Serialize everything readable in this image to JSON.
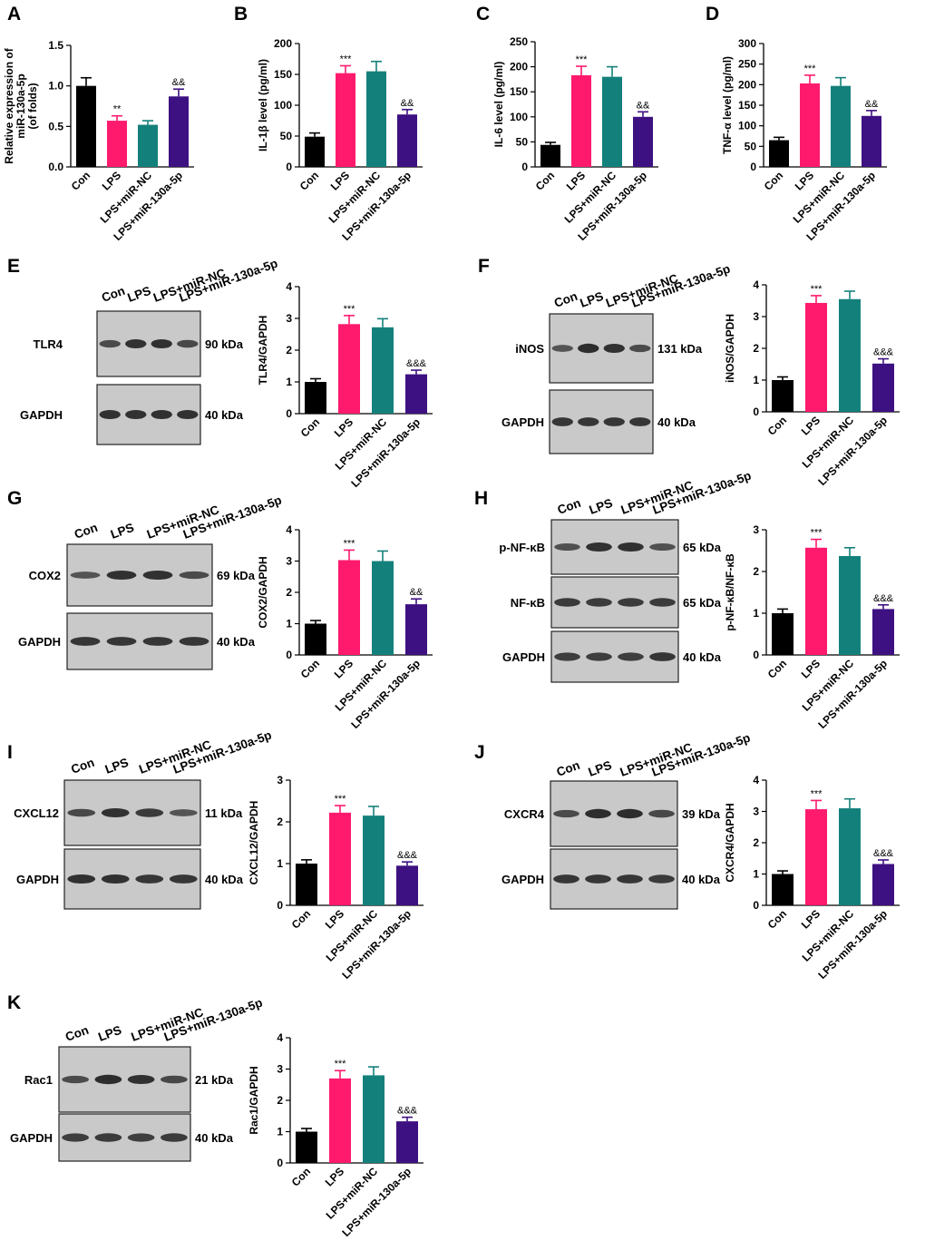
{
  "colors": {
    "con": "#000000",
    "lps": "#ff1a6e",
    "lps_mirnc": "#14807b",
    "lps_mir130": "#3d1181",
    "blot_bg": "#c9c9c9",
    "band": "#1c1c1c",
    "axis": "#000000"
  },
  "categories": [
    "Con",
    "LPS",
    "LPS+miR-NC",
    "LPS+miR-130a-5p"
  ],
  "panel_letters": [
    "A",
    "B",
    "C",
    "D",
    "E",
    "F",
    "G",
    "H",
    "I",
    "J",
    "K"
  ],
  "chart_data": [
    {
      "id": "A",
      "type": "bar",
      "ylabel": "Relative expression of miR-130a-5p (of folds)",
      "ylim": [
        0,
        1.5
      ],
      "yticks": [
        "0.0",
        "0.5",
        "1.0",
        "1.5"
      ],
      "categories": [
        "Con",
        "LPS",
        "LPS+miR-NC",
        "LPS+miR-130a-5p"
      ],
      "values": [
        1.0,
        0.57,
        0.52,
        0.87
      ],
      "errors": [
        0.1,
        0.06,
        0.05,
        0.09
      ],
      "annotations": [
        "",
        "**",
        "",
        "&&"
      ]
    },
    {
      "id": "B",
      "type": "bar",
      "ylabel": "IL-1β level (pg/ml)",
      "ylim": [
        0,
        200
      ],
      "yticks": [
        "0",
        "50",
        "100",
        "150",
        "200"
      ],
      "categories": [
        "Con",
        "LPS",
        "LPS+miR-NC",
        "LPS+miR-130a-5p"
      ],
      "values": [
        49,
        152,
        155,
        85
      ],
      "errors": [
        6,
        12,
        16,
        8
      ],
      "annotations": [
        "",
        "***",
        "",
        "&&"
      ]
    },
    {
      "id": "C",
      "type": "bar",
      "ylabel": "IL-6 level (pg/ml)",
      "ylim": [
        0,
        250
      ],
      "yticks": [
        "0",
        "50",
        "100",
        "150",
        "200",
        "250"
      ],
      "categories": [
        "Con",
        "LPS",
        "LPS+miR-NC",
        "LPS+miR-130a-5p"
      ],
      "values": [
        44,
        183,
        180,
        100
      ],
      "errors": [
        5,
        18,
        20,
        10
      ],
      "annotations": [
        "",
        "***",
        "",
        "&&"
      ]
    },
    {
      "id": "D",
      "type": "bar",
      "ylabel": "TNF-α level (pg/ml)",
      "ylim": [
        0,
        300
      ],
      "yticks": [
        "0",
        "50",
        "100",
        "150",
        "200",
        "250",
        "300"
      ],
      "categories": [
        "Con",
        "LPS",
        "LPS+miR-NC",
        "LPS+miR-130a-5p"
      ],
      "values": [
        65,
        203,
        197,
        124
      ],
      "errors": [
        7,
        20,
        20,
        13
      ],
      "annotations": [
        "",
        "***",
        "",
        "&&"
      ]
    },
    {
      "id": "E",
      "type": "bar",
      "ylabel": "TLR4/GAPDH",
      "ylim": [
        0,
        4
      ],
      "yticks": [
        "0",
        "1",
        "2",
        "3",
        "4"
      ],
      "categories": [
        "Con",
        "LPS",
        "LPS+miR-NC",
        "LPS+miR-130a-5p"
      ],
      "values": [
        1.0,
        2.82,
        2.72,
        1.24
      ],
      "errors": [
        0.1,
        0.27,
        0.27,
        0.13
      ],
      "annotations": [
        "",
        "***",
        "",
        "&&&"
      ]
    },
    {
      "id": "F",
      "type": "bar",
      "ylabel": "iNOS/GAPDH",
      "ylim": [
        0,
        4
      ],
      "yticks": [
        "0",
        "1",
        "2",
        "3",
        "4"
      ],
      "categories": [
        "Con",
        "LPS",
        "LPS+miR-NC",
        "LPS+miR-130a-5p"
      ],
      "values": [
        1.0,
        3.43,
        3.55,
        1.52
      ],
      "errors": [
        0.1,
        0.23,
        0.25,
        0.15
      ],
      "annotations": [
        "",
        "***",
        "",
        "&&&"
      ]
    },
    {
      "id": "G",
      "type": "bar",
      "ylabel": "COX2/GAPDH",
      "ylim": [
        0,
        4
      ],
      "yticks": [
        "0",
        "1",
        "2",
        "3",
        "4"
      ],
      "categories": [
        "Con",
        "LPS",
        "LPS+miR-NC",
        "LPS+miR-130a-5p"
      ],
      "values": [
        1.0,
        3.03,
        3.0,
        1.62
      ],
      "errors": [
        0.1,
        0.32,
        0.32,
        0.17
      ],
      "annotations": [
        "",
        "***",
        "",
        "&&"
      ]
    },
    {
      "id": "H",
      "type": "bar",
      "ylabel": "p-NF-κB/NF-κB",
      "ylim": [
        0,
        3
      ],
      "yticks": [
        "0",
        "1",
        "2",
        "3"
      ],
      "categories": [
        "Con",
        "LPS",
        "LPS+miR-NC",
        "LPS+miR-130a-5p"
      ],
      "values": [
        1.0,
        2.57,
        2.37,
        1.1
      ],
      "errors": [
        0.1,
        0.2,
        0.2,
        0.1
      ],
      "annotations": [
        "",
        "***",
        "",
        "&&&"
      ]
    },
    {
      "id": "I",
      "type": "bar",
      "ylabel": "CXCL12/GAPDH",
      "ylim": [
        0,
        3
      ],
      "yticks": [
        "0",
        "1",
        "2",
        "3"
      ],
      "categories": [
        "Con",
        "LPS",
        "LPS+miR-NC",
        "LPS+miR-130a-5p"
      ],
      "values": [
        1.0,
        2.22,
        2.15,
        0.95
      ],
      "errors": [
        0.09,
        0.17,
        0.22,
        0.09
      ],
      "annotations": [
        "",
        "***",
        "",
        "&&&"
      ]
    },
    {
      "id": "J",
      "type": "bar",
      "ylabel": "CXCR4/GAPDH",
      "ylim": [
        0,
        4
      ],
      "yticks": [
        "0",
        "1",
        "2",
        "3",
        "4"
      ],
      "categories": [
        "Con",
        "LPS",
        "LPS+miR-NC",
        "LPS+miR-130a-5p"
      ],
      "values": [
        1.0,
        3.07,
        3.1,
        1.32
      ],
      "errors": [
        0.1,
        0.28,
        0.3,
        0.13
      ],
      "annotations": [
        "",
        "***",
        "",
        "&&&"
      ]
    },
    {
      "id": "K",
      "type": "bar",
      "ylabel": "Rac1/GAPDH",
      "ylim": [
        0,
        4
      ],
      "yticks": [
        "0",
        "1",
        "2",
        "3",
        "4"
      ],
      "categories": [
        "Con",
        "LPS",
        "LPS+miR-NC",
        "LPS+miR-130a-5p"
      ],
      "values": [
        1.0,
        2.7,
        2.8,
        1.33
      ],
      "errors": [
        0.1,
        0.25,
        0.27,
        0.13
      ],
      "annotations": [
        "",
        "***",
        "",
        "&&&"
      ]
    }
  ],
  "blots": [
    {
      "id": "E",
      "lanes": [
        "Con",
        "LPS",
        "LPS+miR-NC",
        "LPS+miR-130a-5p"
      ],
      "rows": [
        {
          "protein": "TLR4",
          "kda": "90 kDa",
          "band_intensity": [
            0.55,
            0.85,
            0.85,
            0.6
          ]
        },
        {
          "protein": "GAPDH",
          "kda": "40 kDa",
          "band_intensity": [
            0.85,
            0.85,
            0.85,
            0.85
          ]
        }
      ]
    },
    {
      "id": "F",
      "lanes": [
        "Con",
        "LPS",
        "LPS+miR-NC",
        "LPS+miR-130a-5p"
      ],
      "rows": [
        {
          "protein": "iNOS",
          "kda": "131 kDa",
          "band_intensity": [
            0.45,
            0.9,
            0.85,
            0.55
          ]
        },
        {
          "protein": "GAPDH",
          "kda": "40 kDa",
          "band_intensity": [
            0.8,
            0.8,
            0.8,
            0.8
          ]
        }
      ]
    },
    {
      "id": "G",
      "lanes": [
        "Con",
        "LPS",
        "LPS+miR-NC",
        "LPS+miR-130a-5p"
      ],
      "rows": [
        {
          "protein": "COX2",
          "kda": "69 kDa",
          "band_intensity": [
            0.45,
            0.85,
            0.85,
            0.55
          ]
        },
        {
          "protein": "GAPDH",
          "kda": "40 kDa",
          "band_intensity": [
            0.8,
            0.8,
            0.8,
            0.8
          ]
        }
      ]
    },
    {
      "id": "H",
      "lanes": [
        "Con",
        "LPS",
        "LPS+miR-NC",
        "LPS+miR-130a-5p"
      ],
      "rows": [
        {
          "protein": "p-NF-κB",
          "kda": "65 kDa",
          "band_intensity": [
            0.5,
            0.85,
            0.85,
            0.5
          ]
        },
        {
          "protein": "NF-κB",
          "kda": "65 kDa",
          "band_intensity": [
            0.75,
            0.75,
            0.75,
            0.75
          ]
        },
        {
          "protein": "GAPDH",
          "kda": "40 kDa",
          "band_intensity": [
            0.7,
            0.7,
            0.7,
            0.8
          ]
        }
      ]
    },
    {
      "id": "I",
      "lanes": [
        "Con",
        "LPS",
        "LPS+miR-NC",
        "LPS+miR-130a-5p"
      ],
      "rows": [
        {
          "protein": "CXCL12",
          "kda": "11 kDa",
          "band_intensity": [
            0.6,
            0.85,
            0.75,
            0.45
          ]
        },
        {
          "protein": "GAPDH",
          "kda": "40 kDa",
          "band_intensity": [
            0.85,
            0.85,
            0.8,
            0.8
          ]
        }
      ]
    },
    {
      "id": "J",
      "lanes": [
        "Con",
        "LPS",
        "LPS+miR-NC",
        "LPS+miR-130a-5p"
      ],
      "rows": [
        {
          "protein": "CXCR4",
          "kda": "39 kDa",
          "band_intensity": [
            0.55,
            0.9,
            0.9,
            0.6
          ]
        },
        {
          "protein": "GAPDH",
          "kda": "40 kDa",
          "band_intensity": [
            0.8,
            0.8,
            0.8,
            0.75
          ]
        }
      ]
    },
    {
      "id": "K",
      "lanes": [
        "Con",
        "LPS",
        "LPS+miR-NC",
        "LPS+miR-130a-5p"
      ],
      "rows": [
        {
          "protein": "Rac1",
          "kda": "21 kDa",
          "band_intensity": [
            0.55,
            0.9,
            0.85,
            0.6
          ]
        },
        {
          "protein": "GAPDH",
          "kda": "40 kDa",
          "band_intensity": [
            0.7,
            0.75,
            0.7,
            0.75
          ]
        }
      ]
    }
  ]
}
